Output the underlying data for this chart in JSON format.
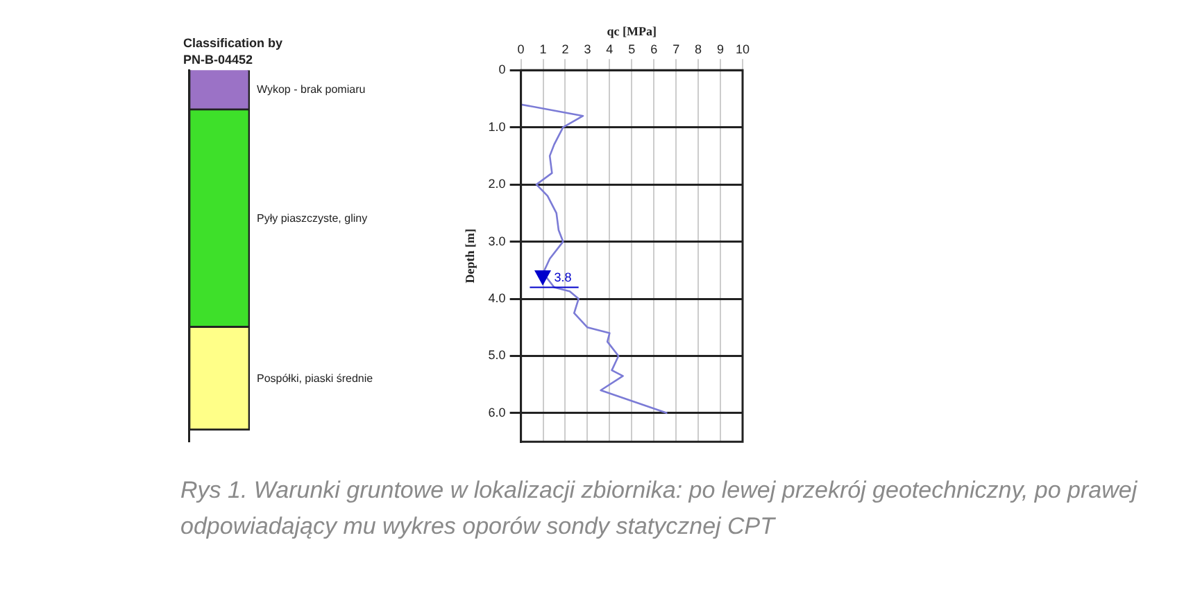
{
  "chart_data": [
    {
      "type": "bar",
      "title": "Classification by PN-B-04452",
      "stacked": true,
      "categories": [
        null
      ],
      "ylim": [
        6.5,
        0
      ],
      "tick_labels": false,
      "legend": false,
      "grid": false,
      "series": [
        {
          "name": "Wykop - brak pomiaru",
          "color": "#9b72c6",
          "values": [
            0.7
          ]
        },
        {
          "name": "Pyły piaszczyste, gliny",
          "color": "#3ee02a",
          "values": [
            3.8
          ]
        },
        {
          "name": "Pospółki, piaski średnie",
          "color": "#ffff88",
          "values": [
            1.8
          ]
        }
      ],
      "annotations": [
        "Rys 1. Warunki gruntowe w lokalizacji zbiornika: po lewej przekrój geotechniczny, po prawej odpowiadający mu wykres oporów sondy statycznej CPT"
      ]
    },
    {
      "type": "line",
      "xlabel": "qc [MPa]",
      "ylabel": "Depth [m]",
      "xlim": [
        0,
        10
      ],
      "xticks": [
        0,
        1,
        2,
        3,
        4,
        5,
        6,
        7,
        8,
        9,
        10
      ],
      "ylim": [
        6.5,
        0
      ],
      "yticks": [
        0,
        {
          "value": 1,
          "label": "1.0"
        },
        {
          "value": 2,
          "label": "2.0"
        },
        {
          "value": 3,
          "label": "3.0"
        },
        {
          "value": 4,
          "label": "4.0"
        },
        {
          "value": 5,
          "label": "5.0"
        },
        {
          "value": 6,
          "label": "6.0"
        }
      ],
      "grid": true,
      "legend": false,
      "marker": "none",
      "line_style": "solid",
      "ref_lines": [
        {
          "axis": "y",
          "value": 3.8,
          "label": "3.8",
          "color": "#0000cc"
        }
      ],
      "series": [
        {
          "color": "#7b7bd6",
          "x": [
            0,
            2.8,
            1.9,
            1.5,
            1.3,
            1.4,
            0.7,
            1.2,
            1.6,
            1.7,
            1.9,
            1.3,
            1.0,
            1.5,
            2.2,
            2.6,
            2.4,
            3.0,
            4.0,
            3.9,
            4.4,
            4.1,
            4.6,
            3.6,
            6.6
          ],
          "values": [
            0.6,
            0.8,
            1.0,
            1.3,
            1.5,
            1.8,
            2.0,
            2.2,
            2.5,
            2.8,
            3.0,
            3.3,
            3.55,
            3.8,
            3.87,
            4.0,
            4.25,
            4.5,
            4.6,
            4.75,
            5.0,
            5.25,
            5.35,
            5.6,
            6.0
          ]
        }
      ]
    }
  ]
}
